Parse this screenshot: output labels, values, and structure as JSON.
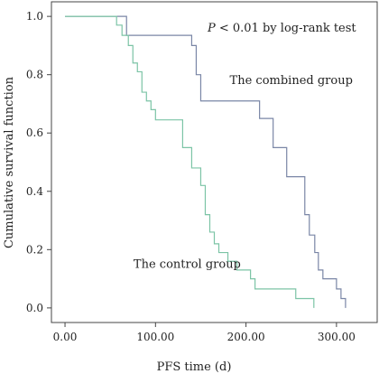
{
  "chart_data": {
    "type": "line",
    "subtype": "kaplan-meier-step",
    "xlabel": "PFS time (d)",
    "ylabel": "Cumulative survival function",
    "xlim": [
      -15,
      345
    ],
    "ylim": [
      -0.05,
      1.05
    ],
    "xticks": [
      0,
      100,
      200,
      300
    ],
    "xtick_labels": [
      "0.00",
      "100.00",
      "200.00",
      "300.00"
    ],
    "yticks": [
      0,
      0.2,
      0.4,
      0.6,
      0.8,
      1.0
    ],
    "ytick_labels": [
      "0.0",
      "0.2",
      "0.4",
      "0.6",
      "0.8",
      "1.0"
    ],
    "grid": false,
    "annotation": {
      "italic": "P",
      "text": " < 0.01 by log-rank test"
    },
    "series": [
      {
        "name": "The combined group",
        "color": "#7a86a6",
        "label_at": [
          250,
          0.78
        ],
        "x": [
          0,
          62,
          68,
          135,
          140,
          145,
          150,
          210,
          215,
          230,
          245,
          265,
          270,
          276,
          280,
          285,
          300,
          305,
          310
        ],
        "y": [
          1.0,
          1.0,
          0.935,
          0.935,
          0.9,
          0.8,
          0.71,
          0.71,
          0.65,
          0.55,
          0.45,
          0.32,
          0.25,
          0.19,
          0.13,
          0.1,
          0.065,
          0.032,
          0.0
        ]
      },
      {
        "name": "The control group",
        "color": "#7cc4a6",
        "label_at": [
          135,
          0.15
        ],
        "x": [
          0,
          50,
          57,
          63,
          70,
          75,
          80,
          85,
          90,
          95,
          100,
          110,
          130,
          140,
          150,
          155,
          160,
          165,
          170,
          175,
          180,
          190,
          205,
          210,
          240,
          255,
          265,
          275
        ],
        "y": [
          1.0,
          1.0,
          0.97,
          0.935,
          0.9,
          0.84,
          0.81,
          0.74,
          0.71,
          0.68,
          0.645,
          0.645,
          0.55,
          0.48,
          0.42,
          0.32,
          0.26,
          0.22,
          0.19,
          0.19,
          0.16,
          0.13,
          0.1,
          0.065,
          0.065,
          0.032,
          0.032,
          0.0
        ]
      }
    ]
  }
}
